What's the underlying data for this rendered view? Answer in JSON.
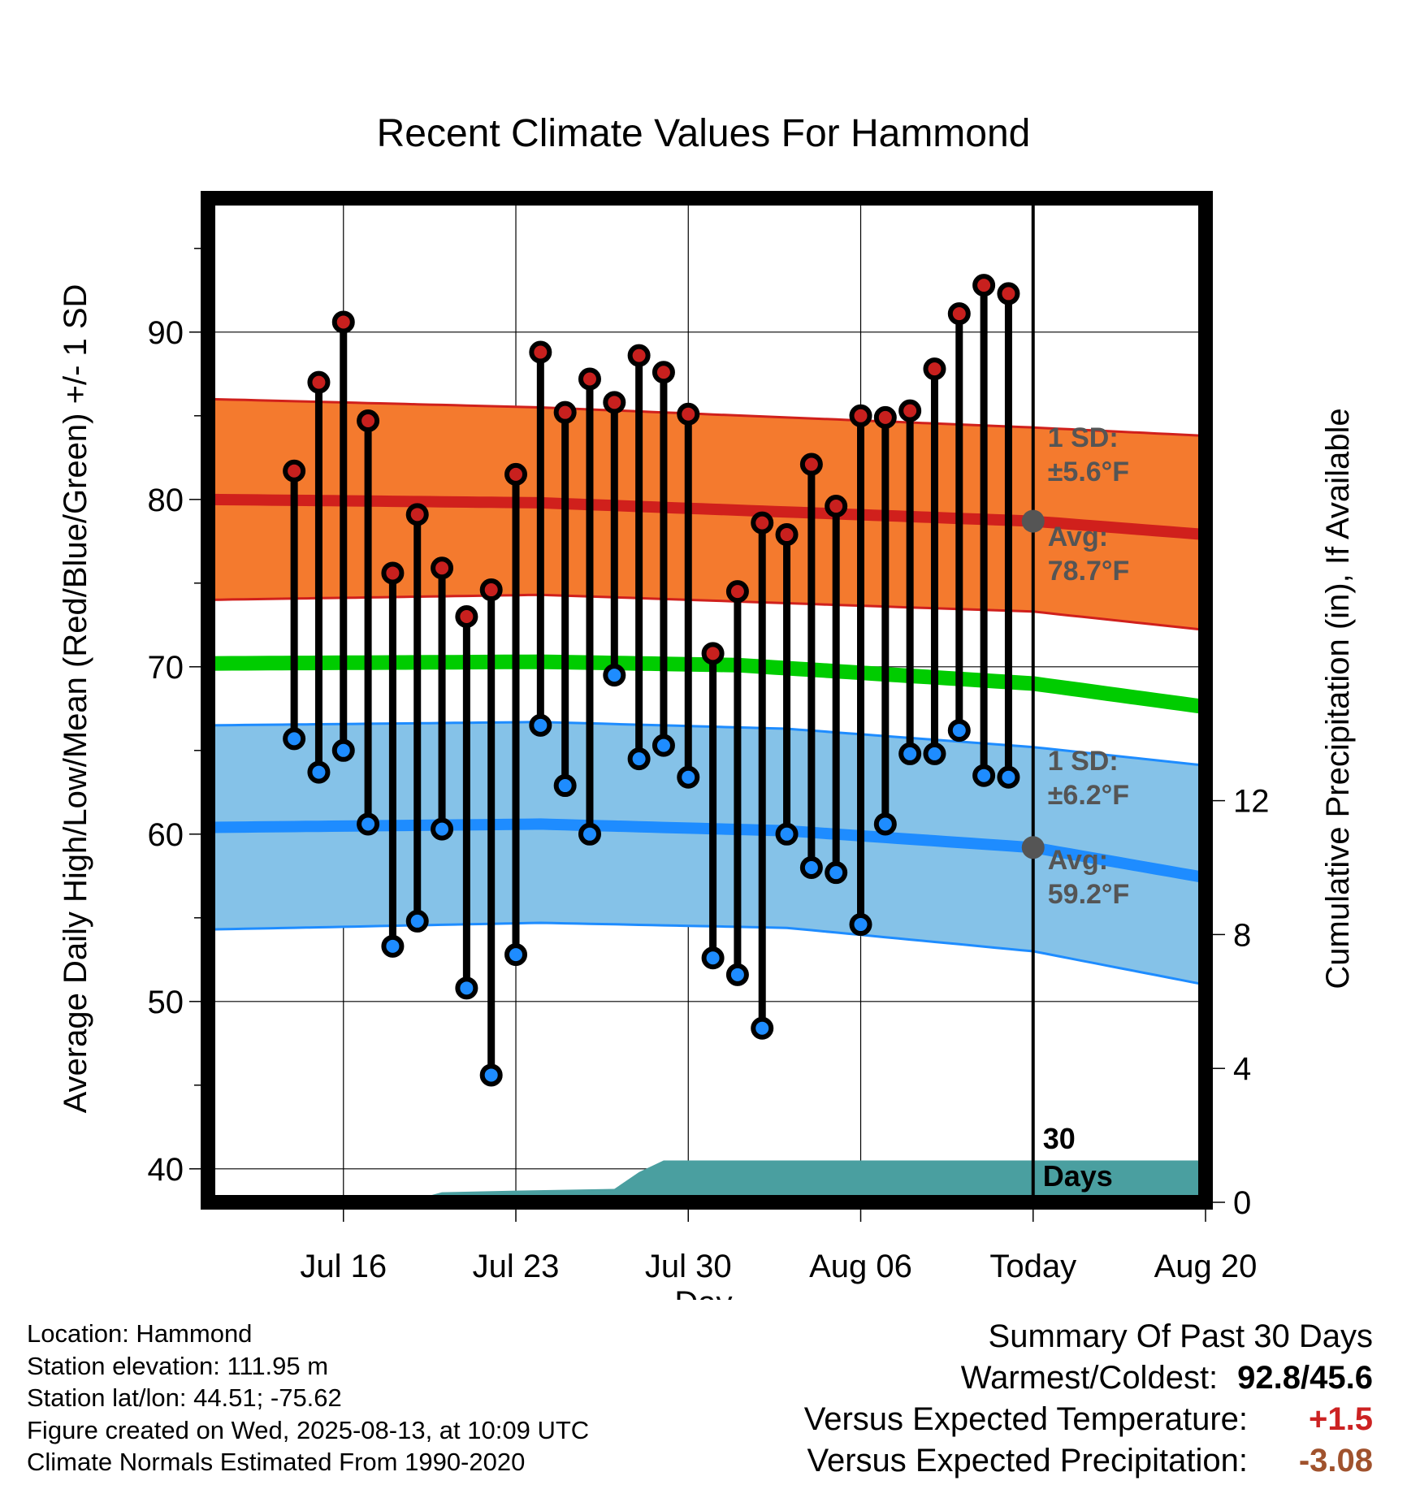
{
  "chart_data": {
    "type": "line",
    "title": "Recent Climate Values For Hammond",
    "xlabel": "Day",
    "ylabel": "Average Daily High/Low/Mean (Red/Blue/Green) +/- 1 SD",
    "y2label": "Cumulative Precipitation (in), If Available",
    "ylim": [
      38,
      98
    ],
    "y_ticks": [
      40,
      50,
      60,
      70,
      80,
      90
    ],
    "y2lim": [
      0,
      30
    ],
    "y2_ticks": [
      0,
      4,
      8,
      12
    ],
    "x_range_days": [
      -33.5,
      7
    ],
    "x_tick_labels": [
      {
        "day": -28,
        "label": "Jul 16"
      },
      {
        "day": -21,
        "label": "Jul 23"
      },
      {
        "day": -14,
        "label": "Jul 30"
      },
      {
        "day": -7,
        "label": "Aug 06"
      },
      {
        "day": 0,
        "label": "Today"
      },
      {
        "day": 7,
        "label": "Aug 20"
      }
    ],
    "today_marker_label": [
      "30",
      "Days"
    ],
    "daily_high": [
      81.7,
      87.0,
      90.6,
      84.7,
      75.6,
      79.1,
      75.9,
      73.0,
      74.6,
      81.5,
      88.8,
      85.2,
      87.2,
      85.8,
      88.6,
      87.6,
      85.1,
      70.8,
      74.5,
      78.6,
      77.9,
      82.1,
      79.6,
      85.0,
      84.9,
      85.3,
      87.8,
      91.1,
      92.8,
      92.3
    ],
    "daily_low": [
      65.7,
      63.7,
      65.0,
      60.6,
      53.3,
      54.8,
      60.3,
      50.8,
      45.6,
      52.8,
      66.5,
      62.9,
      60.0,
      69.5,
      64.5,
      65.3,
      63.4,
      52.6,
      51.6,
      48.4,
      60.0,
      58.0,
      57.7,
      54.6,
      60.6,
      64.8,
      64.8,
      66.2,
      63.5,
      63.4
    ],
    "normal_high": {
      "name": "Avg",
      "x": [
        -33.5,
        -20,
        0,
        7
      ],
      "avg": [
        80.0,
        79.8,
        78.7,
        77.9
      ],
      "upper": [
        86.0,
        85.5,
        84.3,
        83.8
      ],
      "lower": [
        74.0,
        74.3,
        73.3,
        72.2
      ],
      "annotation_sd": [
        "1 SD:",
        "±5.6°F"
      ],
      "annotation_avg": [
        "Avg:",
        "78.7°F"
      ]
    },
    "normal_mean": {
      "x": [
        -33.5,
        -20,
        -12,
        0,
        7
      ],
      "avg": [
        70.2,
        70.3,
        70.1,
        69.0,
        67.6
      ]
    },
    "normal_low": {
      "name": "Avg",
      "x": [
        -33.5,
        -20,
        -10,
        0,
        7
      ],
      "avg": [
        60.4,
        60.6,
        60.2,
        59.2,
        57.4
      ],
      "upper": [
        66.5,
        66.7,
        66.3,
        65.2,
        64.1
      ],
      "lower": [
        54.3,
        54.7,
        54.4,
        53.0,
        51.0
      ],
      "annotation_sd": [
        "1 SD:",
        "±6.2°F"
      ],
      "annotation_avg": [
        "Avg:",
        "59.2°F"
      ]
    },
    "precip_cumulative": {
      "x": [
        -33.5,
        -29,
        -28,
        -25,
        -24,
        -21,
        -17,
        -16,
        -15,
        7
      ],
      "values": [
        0,
        0,
        0.1,
        0.1,
        0.3,
        0.35,
        0.4,
        0.9,
        1.25,
        1.25
      ]
    },
    "colors": {
      "high_marker": "#c8201e",
      "low_marker": "#1e8cff",
      "high_band": "#f47a2e",
      "high_line": "#d0201c",
      "low_band": "#85c2e8",
      "low_line": "#1e8cff",
      "mean_line": "#00cc00",
      "precip": "#4a9fa0",
      "avg_dot": "#555555"
    }
  },
  "footer": {
    "location": "Location: Hammond",
    "elevation": "Station elevation: 111.95 m",
    "latlon": "Station lat/lon: 44.51; -75.62",
    "created": "Figure created on Wed, 2025-08-13, at 10:09 UTC",
    "normals": "Climate Normals Estimated From 1990-2020"
  },
  "summary": {
    "heading": "Summary Of Past 30 Days",
    "warm_cold_label": "Warmest/Coldest:",
    "warm_cold_value": "92.8/45.6",
    "temp_label": "Versus Expected Temperature:",
    "temp_value": "+1.5",
    "temp_color": "#cc2222",
    "precip_label": "Versus Expected Precipitation:",
    "precip_value": "-3.08",
    "precip_color": "#a0522d"
  }
}
